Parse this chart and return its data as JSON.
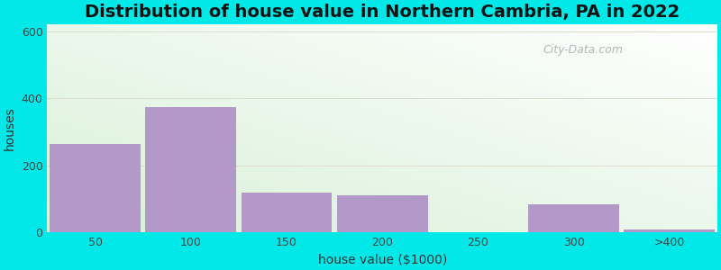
{
  "title": "Distribution of house value in Northern Cambria, PA in 2022",
  "xlabel": "house value ($1000)",
  "ylabel": "houses",
  "bar_labels": [
    "50",
    "100",
    "150",
    "200",
    "250",
    "300",
    ">400"
  ],
  "bar_values": [
    265,
    375,
    120,
    110,
    0,
    85,
    10
  ],
  "bar_color": "#b399c8",
  "ylim": [
    0,
    620
  ],
  "yticks": [
    0,
    200,
    400,
    600
  ],
  "outer_bg_color": "#00e8e8",
  "title_fontsize": 14,
  "axis_label_fontsize": 10,
  "watermark_text": "City-Data.com",
  "bar_width": 0.95,
  "figsize": [
    8.0,
    3.0
  ],
  "dpi": 100
}
